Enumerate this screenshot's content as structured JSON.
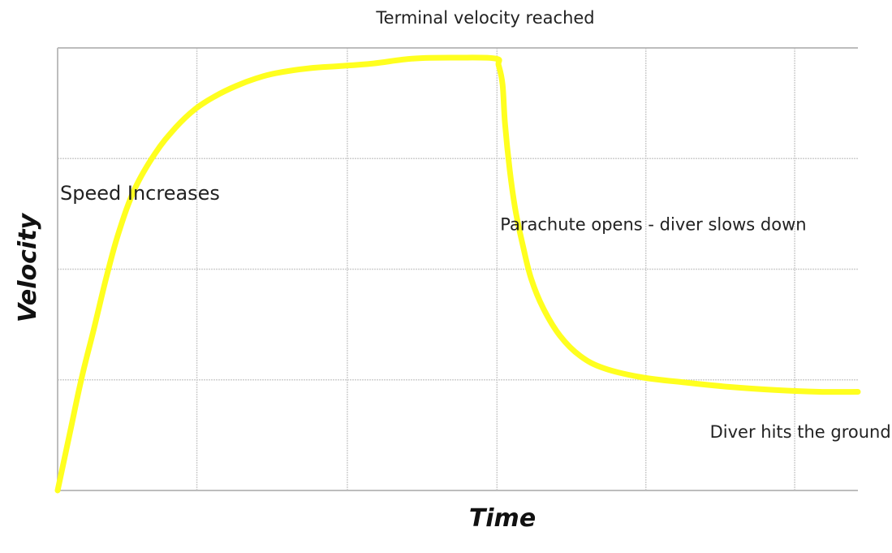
{
  "chart_data": {
    "type": "line",
    "title": "",
    "xlabel": "Time",
    "ylabel": "Velocity",
    "grid": true,
    "legend": "none",
    "xlim": [
      0,
      1
    ],
    "ylim": [
      0,
      1
    ],
    "series": [
      {
        "color": "#ffff1f",
        "points": [
          {
            "x": 0.0,
            "y": 0.0
          },
          {
            "x": 0.016,
            "y": 0.136
          },
          {
            "x": 0.03,
            "y": 0.254
          },
          {
            "x": 0.045,
            "y": 0.363
          },
          {
            "x": 0.061,
            "y": 0.482
          },
          {
            "x": 0.076,
            "y": 0.581
          },
          {
            "x": 0.096,
            "y": 0.68
          },
          {
            "x": 0.122,
            "y": 0.762
          },
          {
            "x": 0.147,
            "y": 0.819
          },
          {
            "x": 0.172,
            "y": 0.862
          },
          {
            "x": 0.197,
            "y": 0.891
          },
          {
            "x": 0.223,
            "y": 0.914
          },
          {
            "x": 0.248,
            "y": 0.931
          },
          {
            "x": 0.273,
            "y": 0.943
          },
          {
            "x": 0.314,
            "y": 0.954
          },
          {
            "x": 0.354,
            "y": 0.959
          },
          {
            "x": 0.395,
            "y": 0.965
          },
          {
            "x": 0.445,
            "y": 0.976
          },
          {
            "x": 0.5,
            "y": 0.978
          },
          {
            "x": 0.547,
            "y": 0.976
          },
          {
            "x": 0.551,
            "y": 0.961
          },
          {
            "x": 0.556,
            "y": 0.917
          },
          {
            "x": 0.559,
            "y": 0.829
          },
          {
            "x": 0.565,
            "y": 0.723
          },
          {
            "x": 0.572,
            "y": 0.634
          },
          {
            "x": 0.582,
            "y": 0.548
          },
          {
            "x": 0.592,
            "y": 0.477
          },
          {
            "x": 0.607,
            "y": 0.411
          },
          {
            "x": 0.628,
            "y": 0.349
          },
          {
            "x": 0.653,
            "y": 0.304
          },
          {
            "x": 0.683,
            "y": 0.276
          },
          {
            "x": 0.729,
            "y": 0.256
          },
          {
            "x": 0.784,
            "y": 0.244
          },
          {
            "x": 0.84,
            "y": 0.234
          },
          {
            "x": 0.896,
            "y": 0.227
          },
          {
            "x": 0.952,
            "y": 0.223
          },
          {
            "x": 1.0,
            "y": 0.223
          }
        ]
      }
    ],
    "annotations": [
      {
        "text": "Terminal velocity reached",
        "x": 0.398,
        "y": 1.055,
        "size": 21
      },
      {
        "text": "Speed Increases",
        "x": 0.003,
        "y": 0.657,
        "size": 24
      },
      {
        "text": "Parachute opens - diver slows down",
        "x": 0.553,
        "y": 0.588,
        "size": 21
      },
      {
        "text": "Diver hits the ground",
        "x": 0.815,
        "y": 0.119,
        "size": 21
      }
    ]
  }
}
